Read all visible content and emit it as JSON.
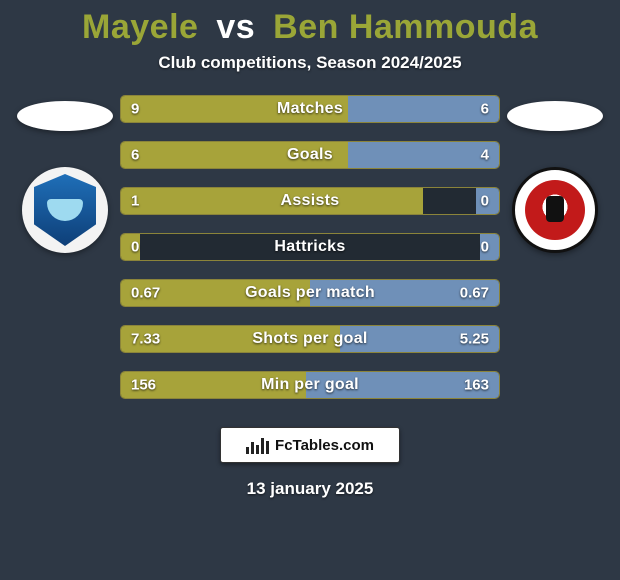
{
  "background_color": "#2e3845",
  "title": {
    "player1": "Mayele",
    "vs": "vs",
    "player2": "Ben Hammouda",
    "color_player1": "#9aa637",
    "color_vs": "#ffffff",
    "color_player2": "#9aa637"
  },
  "subtitle": "Club competitions, Season 2024/2025",
  "bar_colors": {
    "left_fill": "#a7a33a",
    "right_fill": "#6f90b8",
    "track_border": "#8b843a"
  },
  "stats": [
    {
      "label": "Matches",
      "left_text": "9",
      "right_text": "6",
      "left_pct": 60,
      "right_pct": 40
    },
    {
      "label": "Goals",
      "left_text": "6",
      "right_text": "4",
      "left_pct": 60,
      "right_pct": 40
    },
    {
      "label": "Assists",
      "left_text": "1",
      "right_text": "0",
      "left_pct": 80,
      "right_pct": 6
    },
    {
      "label": "Hattricks",
      "left_text": "0",
      "right_text": "0",
      "left_pct": 5,
      "right_pct": 5
    },
    {
      "label": "Goals per match",
      "left_text": "0.67",
      "right_text": "0.67",
      "left_pct": 50,
      "right_pct": 50
    },
    {
      "label": "Shots per goal",
      "left_text": "7.33",
      "right_text": "5.25",
      "left_pct": 58,
      "right_pct": 42
    },
    {
      "label": "Min per goal",
      "left_text": "156",
      "right_text": "163",
      "left_pct": 49,
      "right_pct": 51
    }
  ],
  "footer_brand": "FcTables.com",
  "footer_date": "13 january 2025"
}
